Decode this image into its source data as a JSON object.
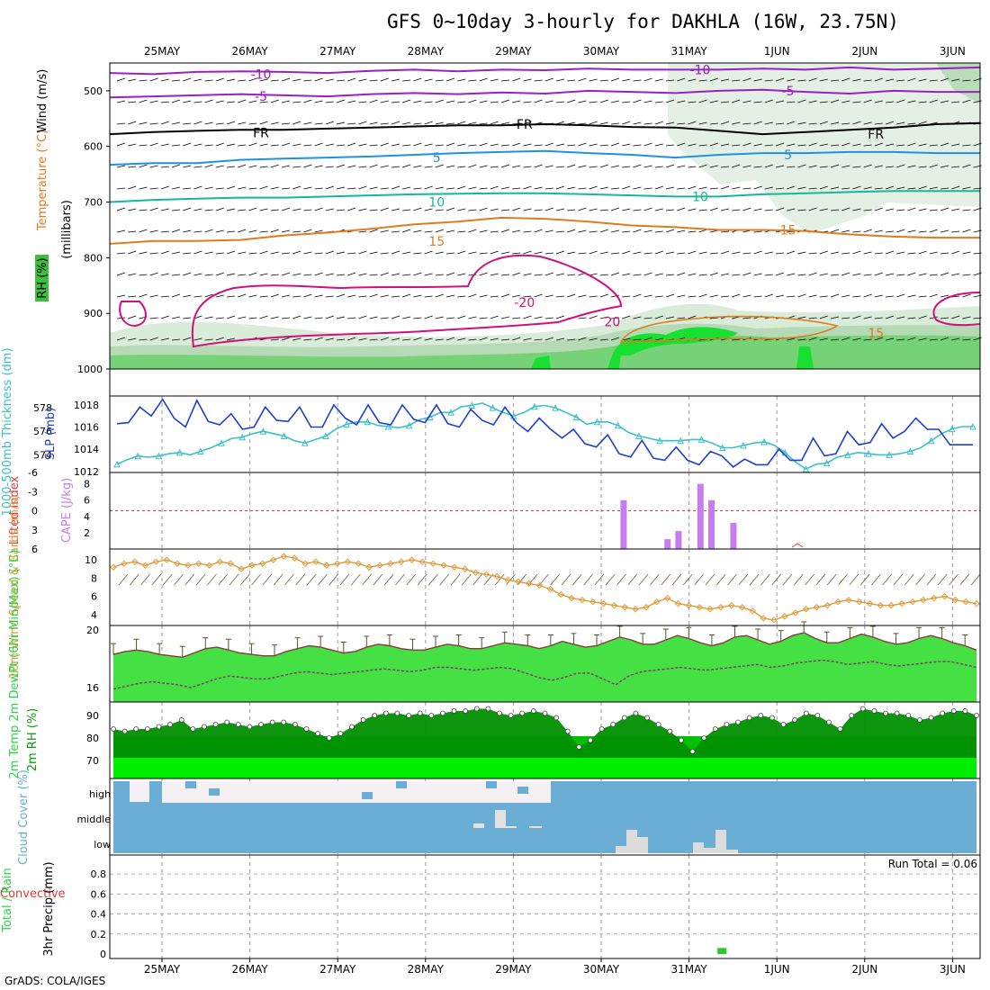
{
  "title": "GFS 0~10day 3-hourly for DAKHLA (16W, 23.75N)",
  "footer": "GrADS: COLA/IGES",
  "run_total": "Run Total = 0.06",
  "dates": [
    "25MAY",
    "26MAY",
    "27MAY",
    "28MAY",
    "29MAY",
    "30MAY",
    "31MAY",
    "1JUN",
    "2JUN",
    "3JUN"
  ],
  "colors": {
    "purple": "#9b1fc4",
    "black": "#000000",
    "blue": "#1e90e6",
    "teal": "#14b89a",
    "orange": "#e07a1f",
    "magenta": "#d0107c",
    "slp": "#1f3fcf",
    "thick": "#3cc0c8",
    "cape": "#c77cf0",
    "li": "#e03a3a",
    "wind": "#e09a3a",
    "temp": "#2ad44a",
    "rh": "#0a9a0a",
    "cloud": "#6aaed6"
  },
  "chart_data": [
    {
      "type": "line",
      "panel": "upper-air",
      "ylabel_parts": [
        "RH (%)",
        "Temperature (°C)",
        "Wind (m/s)"
      ],
      "ylabel": "(millibars)",
      "yticks": [
        "500",
        "600",
        "700",
        "800",
        "900",
        "1000"
      ],
      "x": [
        "25MAY",
        "26MAY",
        "27MAY",
        "28MAY",
        "29MAY",
        "30MAY",
        "31MAY",
        "1JUN",
        "2JUN",
        "3JUN"
      ],
      "contour_labels": [
        {
          "text": "-10",
          "x": "25MAY",
          "level": 470
        },
        {
          "text": "-10",
          "x": "30MAY",
          "level": 462
        },
        {
          "text": "-5",
          "x": "25MAY",
          "level": 510
        },
        {
          "text": "-5",
          "x": "31MAY",
          "level": 500
        },
        {
          "text": "FR",
          "x": "25MAY",
          "level": 575
        },
        {
          "text": "FR",
          "x": "28MAY",
          "level": 560
        },
        {
          "text": "FR",
          "x": "1JUN",
          "level": 578
        },
        {
          "text": "5",
          "x": "27MAY",
          "level": 620
        },
        {
          "text": "5",
          "x": "31MAY",
          "level": 615
        },
        {
          "text": "10",
          "x": "27MAY",
          "level": 700
        },
        {
          "text": "10",
          "x": "30MAY",
          "level": 690
        },
        {
          "text": "15",
          "x": "27MAY",
          "level": 770
        },
        {
          "text": "15",
          "x": "31MAY",
          "level": 750
        },
        {
          "text": "-20",
          "x": "28MAY",
          "level": 880
        },
        {
          "text": "20",
          "x": "29MAY",
          "level": 915
        },
        {
          "text": "15",
          "x": "1JUN",
          "level": 935
        }
      ],
      "series": [
        {
          "name": "-10",
          "level": [
            468,
            470,
            466,
            465,
            466,
            468,
            464,
            462,
            465,
            462,
            463,
            460,
            462,
            462,
            462,
            460,
            462,
            458,
            462,
            460,
            458
          ]
        },
        {
          "name": "-5",
          "level": [
            512,
            510,
            508,
            506,
            508,
            510,
            506,
            504,
            506,
            503,
            505,
            500,
            502,
            504,
            500,
            498,
            502,
            505,
            500,
            502,
            502
          ]
        },
        {
          "name": "FR",
          "level": [
            578,
            574,
            572,
            570,
            570,
            568,
            566,
            564,
            562,
            562,
            560,
            562,
            565,
            566,
            572,
            578,
            574,
            570,
            566,
            560,
            558
          ]
        },
        {
          "name": "5",
          "level": [
            633,
            630,
            630,
            624,
            622,
            620,
            618,
            615,
            612,
            610,
            608,
            612,
            615,
            620,
            615,
            612,
            612,
            610,
            610,
            612,
            612
          ]
        },
        {
          "name": "10",
          "level": [
            700,
            696,
            694,
            692,
            692,
            690,
            688,
            686,
            685,
            684,
            684,
            686,
            688,
            690,
            690,
            686,
            684,
            682,
            680,
            680,
            680
          ]
        },
        {
          "name": "15",
          "level": [
            775,
            770,
            770,
            768,
            760,
            755,
            748,
            740,
            735,
            728,
            730,
            735,
            742,
            745,
            750,
            750,
            752,
            758,
            762,
            764,
            764
          ]
        }
      ]
    },
    {
      "type": "line",
      "panel": "slp-thickness",
      "ylabel_left": "1000-500mb Thickness (dm)",
      "ylabel_right": "SLP (mb)",
      "yticks_left": [
        "578",
        "576",
        "574"
      ],
      "yticks_right": [
        "1018",
        "1016",
        "1014",
        "1012"
      ],
      "series": [
        {
          "name": "SLP",
          "values": [
            1016.3,
            1016.4,
            1017.8,
            1017.0,
            1018.5,
            1016.8,
            1016.0,
            1018.4,
            1016.5,
            1016.2,
            1017.2,
            1015.8,
            1016.0,
            1017.8,
            1016.6,
            1016.5,
            1017.8,
            1016.0,
            1016.0,
            1018.0,
            1016.8,
            1016.2,
            1018.0,
            1016.4,
            1016.2,
            1018.0,
            1016.7,
            1016.4,
            1018.0,
            1016.3,
            1016.0,
            1017.6,
            1016.6,
            1016.2,
            1017.8,
            1016.4,
            1015.6,
            1016.8,
            1015.8,
            1015.0,
            1015.8,
            1014.5,
            1014.2,
            1015.3,
            1013.6,
            1013.3,
            1014.8,
            1013.2,
            1013.0,
            1014.2,
            1013.0,
            1012.6,
            1013.8,
            1013.4,
            1012.4,
            1013.1,
            1012.6,
            1012.6,
            1014.0,
            1013.0,
            1013.0,
            1015.0,
            1013.4,
            1013.6,
            1015.6,
            1014.4,
            1014.6,
            1016.3,
            1015.0,
            1015.6,
            1016.8,
            1015.8,
            1015.8,
            1014.4,
            1014.4,
            1014.4
          ]
        },
        {
          "name": "Thickness",
          "values": [
            573.2,
            573.6,
            573.9,
            573.8,
            573.9,
            574.1,
            574.2,
            574.0,
            574.3,
            574.6,
            575.0,
            575.4,
            575.5,
            575.8,
            576.0,
            575.8,
            575.6,
            575.2,
            575.0,
            575.3,
            575.6,
            576.2,
            576.6,
            576.8,
            576.8,
            576.5,
            576.4,
            576.3,
            576.5,
            577.0,
            577.2,
            577.6,
            577.6,
            578.1,
            578.2,
            578.4,
            578.0,
            577.6,
            577.3,
            577.6,
            578.1,
            578.2,
            578.0,
            577.6,
            577.2,
            576.6,
            576.8,
            576.8,
            576.5,
            575.9,
            575.6,
            575.4,
            575.2,
            575.2,
            575.2,
            575.3,
            575.3,
            575.0,
            574.6,
            574.6,
            574.8,
            575.0,
            575.1,
            574.8,
            574.2,
            573.4,
            572.8,
            573.2,
            573.3,
            573.8,
            574.0,
            574.2,
            574.1,
            574.0,
            574.0,
            574.1,
            574.3,
            574.6,
            575.2,
            575.8,
            576.2,
            576.4,
            576.4
          ]
        }
      ]
    },
    {
      "type": "bar",
      "panel": "cape-li",
      "ylabel_left": "Lifted Index",
      "ylabel_right": "CAPE (J/kg)",
      "yticks_left": [
        "-6",
        "-3",
        "0",
        "3",
        "6"
      ],
      "yticks_right": [
        "8",
        "6",
        "4",
        "2"
      ],
      "li_zero_label": "0",
      "bars": [
        {
          "x": "30MAY",
          "hour": 6,
          "value": 6.0
        },
        {
          "x": "30MAY",
          "hour": 18,
          "value": 1.2
        },
        {
          "x": "30MAY",
          "hour": 21,
          "value": 2.2
        },
        {
          "x": "31MAY",
          "hour": 3,
          "value": 8.0
        },
        {
          "x": "31MAY",
          "hour": 6,
          "value": 6.0
        },
        {
          "x": "31MAY",
          "hour": 12,
          "value": 3.2
        }
      ]
    },
    {
      "type": "line",
      "panel": "wind10m",
      "ylabel": "10m Wind Speed & Barbs (m/s)",
      "yticks": [
        "10",
        "8",
        "6",
        "4"
      ],
      "values": [
        9.2,
        9.6,
        9.8,
        9.4,
        9.8,
        10.0,
        9.6,
        9.4,
        9.6,
        9.4,
        9.8,
        9.6,
        9.0,
        9.4,
        9.6,
        10.0,
        10.4,
        10.2,
        9.6,
        9.8,
        9.4,
        9.6,
        9.8,
        9.6,
        9.2,
        9.4,
        9.6,
        9.8,
        10.0,
        9.8,
        9.6,
        9.4,
        9.2,
        9.0,
        8.6,
        8.4,
        8.2,
        7.8,
        7.6,
        7.4,
        7.2,
        6.8,
        6.2,
        5.8,
        5.6,
        5.4,
        5.2,
        5.0,
        4.8,
        4.6,
        4.8,
        5.4,
        5.8,
        5.2,
        5.0,
        4.8,
        4.6,
        4.8,
        5.0,
        4.8,
        4.4,
        3.6,
        3.4,
        3.8,
        4.2,
        4.6,
        4.8,
        5.0,
        5.4,
        5.6,
        5.4,
        5.2,
        5.0,
        5.0,
        5.2,
        5.4,
        5.6,
        5.8,
        6.0,
        5.6,
        5.4,
        5.2
      ]
    },
    {
      "type": "area",
      "panel": "temp2m",
      "ylabel": "2m Temp 2m DewPt (6hr Min/Max) (°C)",
      "yticks": [
        "20",
        "16"
      ],
      "series": [
        {
          "name": "Temp",
          "values": [
            18.3,
            18.5,
            18.6,
            18.5,
            18.3,
            18.2,
            18.1,
            18.4,
            18.7,
            18.8,
            18.6,
            18.4,
            18.3,
            18.2,
            18.2,
            18.5,
            18.7,
            18.9,
            18.8,
            18.6,
            18.4,
            18.5,
            18.8,
            19.0,
            18.9,
            18.7,
            18.6,
            18.6,
            18.8,
            19.0,
            18.9,
            18.7,
            18.7,
            18.9,
            19.1,
            19.0,
            18.9,
            18.7,
            18.9,
            19.2,
            19.0,
            18.8,
            18.9,
            19.2,
            19.5,
            19.3,
            19.0,
            19.0,
            19.3,
            19.6,
            19.4,
            19.1,
            18.9,
            19.1,
            19.5,
            19.6,
            19.3,
            19.0,
            19.2,
            19.6,
            19.8,
            19.4,
            19.1,
            19.1,
            19.4,
            19.7,
            19.5,
            19.2,
            19.0,
            19.1,
            19.4,
            19.6,
            19.4,
            19.1,
            18.9,
            18.6
          ]
        },
        {
          "name": "DewPt",
          "values": [
            15.9,
            16.1,
            16.3,
            16.4,
            16.3,
            16.2,
            16.0,
            16.3,
            16.6,
            16.8,
            16.7,
            16.6,
            16.6,
            16.8,
            17.0,
            17.1,
            17.0,
            16.9,
            17.0,
            17.1,
            17.2,
            17.3,
            17.2,
            17.1,
            17.2,
            17.4,
            17.4,
            17.3,
            17.2,
            17.3,
            17.4,
            17.3,
            17.0,
            16.7,
            16.5,
            16.7,
            17.0,
            17.0,
            16.6,
            16.2,
            16.8,
            17.1,
            17.2,
            17.3,
            17.4,
            17.3,
            17.2,
            17.3,
            17.4,
            17.5,
            17.6,
            17.4,
            17.5,
            17.7,
            17.8,
            17.9,
            17.8,
            17.6,
            17.7,
            17.8,
            17.6,
            17.5,
            17.6,
            17.7,
            17.8,
            17.8,
            17.6,
            17.4
          ]
        }
      ]
    },
    {
      "type": "area",
      "panel": "rh2m",
      "ylabel": "2m RH (%)",
      "yticks": [
        "90",
        "80",
        "70"
      ],
      "values": [
        84,
        83,
        84,
        84,
        85,
        86,
        88,
        84,
        85,
        86,
        87,
        86,
        85,
        86,
        87,
        87,
        86,
        84,
        82,
        80,
        82,
        85,
        88,
        90,
        91,
        91,
        90,
        91,
        90,
        91,
        92,
        92,
        93,
        93,
        91,
        90,
        91,
        92,
        91,
        89,
        83,
        76,
        79,
        84,
        86,
        89,
        91,
        89,
        86,
        83,
        79,
        74,
        80,
        84,
        86,
        87,
        89,
        90,
        89,
        86,
        88,
        91,
        90,
        87,
        84,
        90,
        93,
        92,
        91,
        91,
        90,
        88,
        89,
        91,
        92,
        92,
        90
      ]
    },
    {
      "type": "bar",
      "panel": "cloud",
      "ylabel": "Cloud Cover (%)",
      "yticks": [
        "high",
        "middle",
        "low"
      ]
    },
    {
      "type": "bar",
      "panel": "precip",
      "ylabel_left_1": "Total / Rain",
      "ylabel_left_2": "Convective",
      "ylabel": "3hr Precip (mm)",
      "yticks": [
        "0.8",
        "0.6",
        "0.4",
        "0.2",
        "0"
      ],
      "bars": [
        {
          "x": "31MAY",
          "hour": 9,
          "value": 0.06
        }
      ]
    }
  ]
}
